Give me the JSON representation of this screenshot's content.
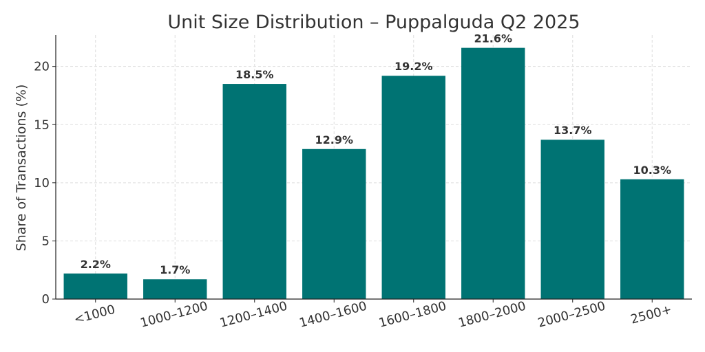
{
  "chart_data": {
    "type": "bar",
    "title": "Unit Size Distribution – Puppalguda Q2 2025",
    "xlabel": "",
    "ylabel": "Share of Transactions (%)",
    "categories": [
      "<1000",
      "1000–1200",
      "1200–1400",
      "1400–1600",
      "1600–1800",
      "1800–2000",
      "2000–2500",
      "2500+"
    ],
    "values": [
      2.2,
      1.7,
      18.5,
      12.9,
      19.2,
      21.6,
      13.7,
      10.3
    ],
    "data_labels": [
      "2.2%",
      "1.7%",
      "18.5%",
      "12.9%",
      "19.2%",
      "21.6%",
      "13.7%",
      "10.3%"
    ],
    "ylim": [
      0,
      22.7
    ],
    "yticks": [
      0,
      5,
      10,
      15,
      20
    ],
    "grid": true,
    "bar_color": "#007373"
  }
}
